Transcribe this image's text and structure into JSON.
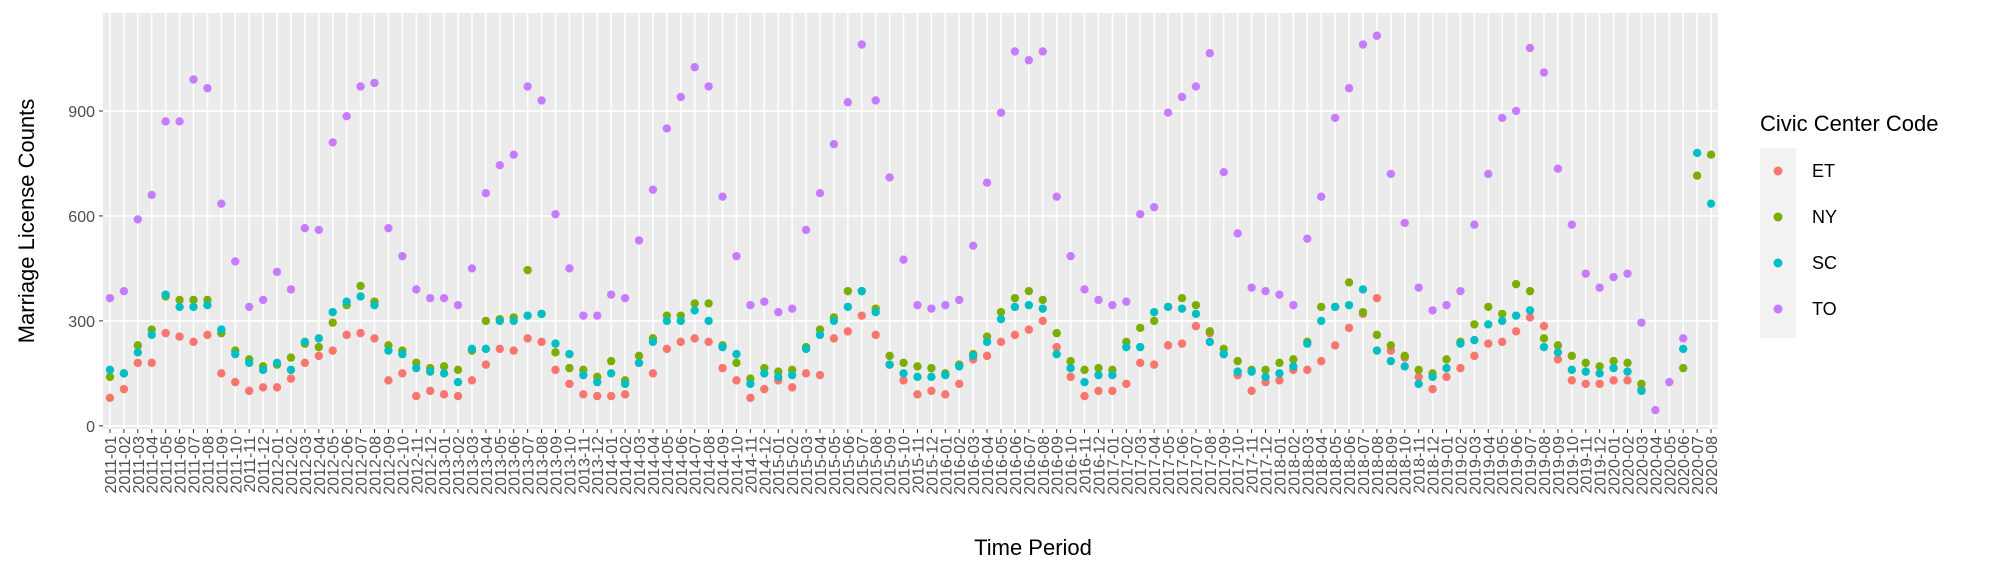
{
  "chart_data": {
    "type": "scatter",
    "x_label": "Time Period",
    "y_label": "Marriage License Counts",
    "legend_title": "Civic Center Code",
    "categories": [
      "2011-01",
      "2011-02",
      "2011-03",
      "2011-04",
      "2011-05",
      "2011-06",
      "2011-07",
      "2011-08",
      "2011-09",
      "2011-10",
      "2011-11",
      "2011-12",
      "2012-01",
      "2012-02",
      "2012-03",
      "2012-04",
      "2012-05",
      "2012-06",
      "2012-07",
      "2012-08",
      "2012-09",
      "2012-10",
      "2012-11",
      "2012-12",
      "2013-01",
      "2013-02",
      "2013-03",
      "2013-04",
      "2013-05",
      "2013-06",
      "2013-07",
      "2013-08",
      "2013-09",
      "2013-10",
      "2013-11",
      "2013-12",
      "2014-01",
      "2014-02",
      "2014-03",
      "2014-04",
      "2014-05",
      "2014-06",
      "2014-07",
      "2014-08",
      "2014-09",
      "2014-10",
      "2014-11",
      "2014-12",
      "2015-01",
      "2015-02",
      "2015-03",
      "2015-04",
      "2015-05",
      "2015-06",
      "2015-07",
      "2015-08",
      "2015-09",
      "2015-10",
      "2015-11",
      "2015-12",
      "2016-01",
      "2016-02",
      "2016-03",
      "2016-04",
      "2016-05",
      "2016-06",
      "2016-07",
      "2016-08",
      "2016-09",
      "2016-10",
      "2016-11",
      "2016-12",
      "2017-01",
      "2017-02",
      "2017-03",
      "2017-04",
      "2017-05",
      "2017-06",
      "2017-07",
      "2017-08",
      "2017-09",
      "2017-10",
      "2017-11",
      "2017-12",
      "2018-01",
      "2018-02",
      "2018-03",
      "2018-04",
      "2018-05",
      "2018-06",
      "2018-07",
      "2018-08",
      "2018-09",
      "2018-10",
      "2018-11",
      "2018-12",
      "2019-01",
      "2019-02",
      "2019-03",
      "2019-04",
      "2019-05",
      "2019-06",
      "2019-07",
      "2019-08",
      "2019-09",
      "2019-10",
      "2019-11",
      "2019-12",
      "2020-01",
      "2020-02",
      "2020-03",
      "2020-04",
      "2020-05",
      "2020-06",
      "2020-07",
      "2020-08"
    ],
    "series": [
      {
        "name": "ET",
        "color": "#F8766D",
        "values": [
          80,
          105,
          180,
          180,
          265,
          255,
          240,
          260,
          150,
          125,
          100,
          110,
          110,
          135,
          180,
          200,
          215,
          260,
          265,
          250,
          130,
          150,
          85,
          100,
          90,
          85,
          130,
          175,
          220,
          215,
          250,
          240,
          160,
          120,
          90,
          85,
          85,
          90,
          180,
          150,
          220,
          240,
          250,
          240,
          165,
          130,
          80,
          105,
          130,
          110,
          150,
          145,
          250,
          270,
          315,
          260,
          175,
          130,
          90,
          100,
          90,
          120,
          190,
          200,
          240,
          260,
          275,
          300,
          225,
          140,
          85,
          100,
          100,
          120,
          180,
          175,
          230,
          235,
          285,
          265,
          205,
          145,
          100,
          125,
          130,
          160,
          160,
          185,
          230,
          280,
          320,
          365,
          215,
          195,
          140,
          105,
          140,
          165,
          200,
          235,
          240,
          270,
          310,
          285,
          190,
          130,
          120,
          120,
          130,
          130,
          105,
          null,
          null,
          null,
          null,
          null
        ]
      },
      {
        "name": "NY",
        "color": "#7CAE00",
        "values": [
          140,
          150,
          230,
          275,
          370,
          360,
          360,
          360,
          265,
          215,
          190,
          170,
          175,
          195,
          235,
          225,
          295,
          345,
          400,
          355,
          230,
          215,
          180,
          165,
          170,
          160,
          215,
          300,
          305,
          310,
          445,
          320,
          210,
          165,
          160,
          140,
          185,
          130,
          200,
          250,
          315,
          315,
          350,
          350,
          230,
          180,
          135,
          165,
          155,
          160,
          225,
          275,
          310,
          385,
          385,
          335,
          200,
          180,
          170,
          165,
          150,
          175,
          205,
          255,
          325,
          365,
          385,
          360,
          265,
          185,
          160,
          165,
          160,
          240,
          280,
          300,
          340,
          365,
          345,
          270,
          220,
          185,
          160,
          160,
          180,
          190,
          240,
          340,
          340,
          410,
          325,
          260,
          230,
          200,
          160,
          150,
          190,
          240,
          290,
          340,
          320,
          405,
          385,
          250,
          230,
          200,
          180,
          170,
          185,
          180,
          120,
          null,
          null,
          165,
          715,
          775
        ]
      },
      {
        "name": "SC",
        "color": "#00BFC4",
        "values": [
          160,
          150,
          210,
          260,
          375,
          340,
          340,
          345,
          275,
          205,
          180,
          160,
          180,
          160,
          240,
          250,
          325,
          355,
          370,
          345,
          215,
          205,
          165,
          155,
          150,
          125,
          220,
          220,
          300,
          300,
          315,
          320,
          235,
          205,
          145,
          125,
          150,
          120,
          180,
          240,
          300,
          300,
          330,
          300,
          225,
          205,
          120,
          150,
          140,
          145,
          220,
          260,
          300,
          340,
          385,
          325,
          175,
          150,
          140,
          140,
          145,
          170,
          200,
          240,
          305,
          340,
          345,
          335,
          205,
          165,
          125,
          145,
          145,
          225,
          225,
          325,
          340,
          335,
          320,
          240,
          205,
          155,
          155,
          140,
          150,
          170,
          235,
          300,
          340,
          345,
          390,
          215,
          185,
          170,
          120,
          140,
          165,
          235,
          245,
          290,
          300,
          315,
          330,
          225,
          210,
          160,
          155,
          150,
          165,
          155,
          100,
          null,
          null,
          220,
          780,
          635
        ]
      },
      {
        "name": "TO",
        "color": "#C77CFF",
        "values": [
          365,
          385,
          590,
          660,
          870,
          870,
          990,
          965,
          635,
          470,
          340,
          360,
          440,
          390,
          565,
          560,
          810,
          885,
          970,
          980,
          565,
          485,
          390,
          365,
          365,
          345,
          450,
          665,
          745,
          775,
          970,
          930,
          605,
          450,
          315,
          315,
          375,
          365,
          530,
          675,
          850,
          940,
          1025,
          970,
          655,
          485,
          345,
          355,
          325,
          335,
          560,
          665,
          805,
          925,
          1090,
          930,
          710,
          475,
          345,
          335,
          345,
          360,
          515,
          695,
          895,
          1070,
          1045,
          1070,
          655,
          485,
          390,
          360,
          345,
          355,
          605,
          625,
          895,
          940,
          970,
          1065,
          725,
          550,
          395,
          385,
          375,
          345,
          535,
          655,
          880,
          965,
          1090,
          1115,
          720,
          580,
          395,
          330,
          345,
          385,
          575,
          720,
          880,
          900,
          1080,
          1010,
          735,
          575,
          435,
          395,
          425,
          435,
          295,
          45,
          125,
          250,
          null,
          null
        ]
      }
    ],
    "ylim": [
      -9,
      1180
    ],
    "yticks": [
      0,
      300,
      600,
      900
    ],
    "grid": true,
    "legend": "right"
  }
}
